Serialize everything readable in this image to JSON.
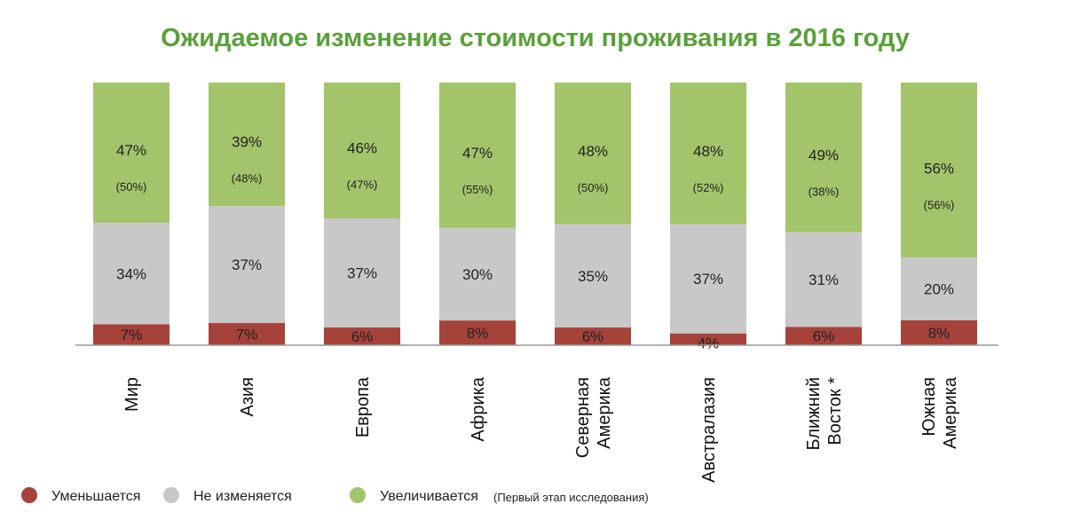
{
  "chart_data": {
    "type": "bar",
    "stacked": true,
    "normalized": true,
    "title": "Ожидаемое изменение стоимости проживания в 2016 году",
    "categories": [
      [
        "Мир"
      ],
      [
        "Азия"
      ],
      [
        "Европа"
      ],
      [
        "Африка"
      ],
      [
        "Северная",
        "Америка"
      ],
      [
        "Австралазия"
      ],
      [
        "Ближний",
        "Восток *"
      ],
      [
        "Южная",
        "Америка"
      ]
    ],
    "series": [
      {
        "name": "Уменьшается",
        "color": "#a5423a",
        "values": [
          7,
          7,
          6,
          8,
          6,
          4,
          6,
          8
        ]
      },
      {
        "name": "Не изменяется",
        "color": "#c8c8c8",
        "values": [
          34,
          37,
          37,
          30,
          35,
          37,
          31,
          20
        ]
      },
      {
        "name": "Увеличивается",
        "color": "#a3c46a",
        "values": [
          47,
          39,
          46,
          47,
          48,
          48,
          49,
          56
        ]
      }
    ],
    "first_stage_increase": [
      "(50%)",
      "(48%)",
      "(47%)",
      "(55%)",
      "(50%)",
      "(52%)",
      "(38%)",
      "(56%)"
    ],
    "legend_note": "(Первый этап исследования)",
    "legend_placement": "bottom-left",
    "grid": false,
    "title_color": "#5aa03a"
  }
}
